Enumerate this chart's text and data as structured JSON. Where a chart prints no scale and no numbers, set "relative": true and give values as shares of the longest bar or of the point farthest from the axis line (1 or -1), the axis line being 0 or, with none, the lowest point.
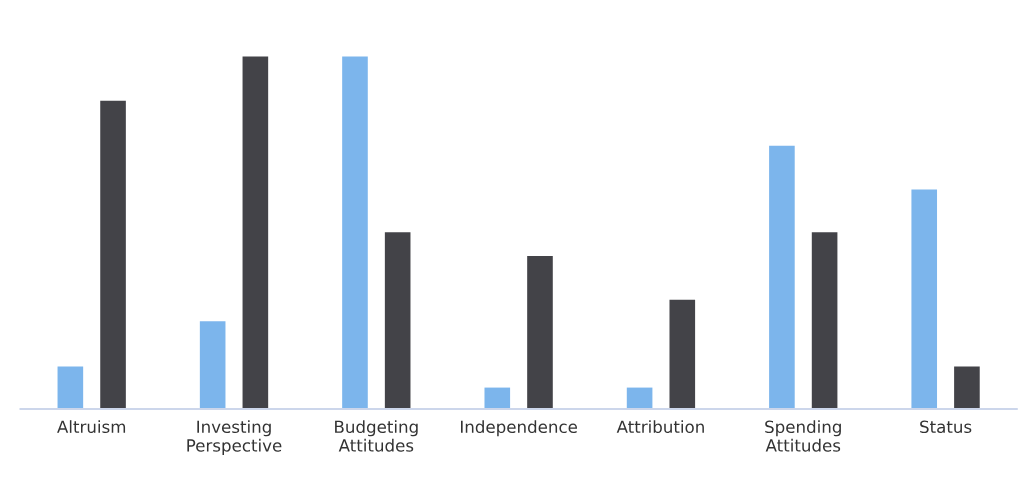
{
  "chart_data": {
    "type": "bar",
    "relative": true,
    "categories": [
      "Altruism",
      "Investing\nPerspective",
      "Budgeting\nAttitudes",
      "Independence",
      "Attribution",
      "Spending\nAttitudes",
      "Status"
    ],
    "series": [
      {
        "color": "#7cb5ec",
        "values": [
          0.121,
          0.249,
          1,
          0.061,
          0.061,
          0.747,
          0.623
        ]
      },
      {
        "color": "#434348",
        "values": [
          0.875,
          1,
          0.502,
          0.434,
          0.31,
          0.502,
          0.121
        ]
      }
    ]
  }
}
